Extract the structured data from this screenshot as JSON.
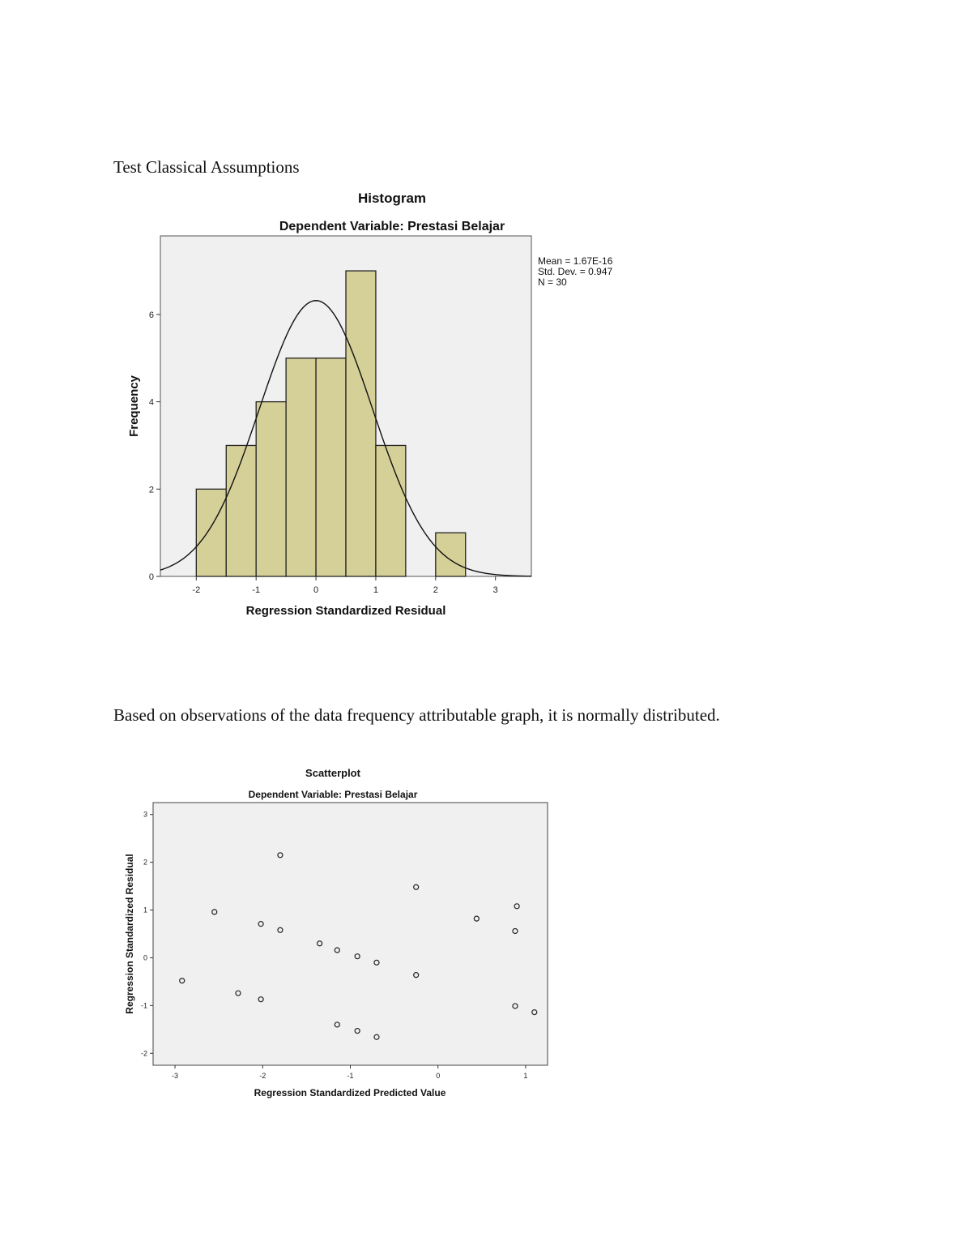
{
  "document": {
    "heading": "Test Classical Assumptions",
    "paragraph": "Based on observations of the data frequency attributable graph, it is normally distributed."
  },
  "histogram": {
    "title": "Histogram",
    "subtitle": "Dependent Variable: Prestasi Belajar",
    "stats": [
      "Mean = 1.67E-16",
      "Std. Dev. = 0.947",
      "N = 30"
    ],
    "bar_fill": "#d5cf98",
    "frame_bg": "#f0f0f0"
  },
  "scatter": {
    "title": "Scatterplot",
    "subtitle": "Dependent Variable: Prestasi Belajar",
    "frame_bg": "#f0f0f0"
  },
  "chart_data": [
    {
      "type": "bar",
      "title": "Histogram",
      "subtitle": "Dependent Variable: Prestasi Belajar",
      "xlabel": "Regression Standardized Residual",
      "ylabel": "Frequency",
      "bin_width": 0.5,
      "bins": [
        {
          "start": -2.0,
          "end": -1.5,
          "count": 2
        },
        {
          "start": -1.5,
          "end": -1.0,
          "count": 3
        },
        {
          "start": -1.0,
          "end": -0.5,
          "count": 4
        },
        {
          "start": -0.5,
          "end": 0.0,
          "count": 5
        },
        {
          "start": 0.0,
          "end": 0.5,
          "count": 5
        },
        {
          "start": 0.5,
          "end": 1.0,
          "count": 7
        },
        {
          "start": 1.0,
          "end": 1.5,
          "count": 3
        },
        {
          "start": 2.0,
          "end": 2.5,
          "count": 1
        }
      ],
      "normal_curve": {
        "mean": 0.0,
        "std": 0.947,
        "n": 30
      },
      "xlim": [
        -2.6,
        3.6
      ],
      "ylim": [
        0,
        7.8
      ],
      "xticks": [
        -2,
        -1,
        0,
        1,
        2,
        3
      ],
      "xtick_labels": [
        "-2",
        "-1",
        "0",
        "1",
        "2",
        "3"
      ],
      "yticks": [
        0,
        2,
        4,
        6
      ],
      "ytick_labels": [
        "0",
        "2",
        "4",
        "6"
      ],
      "grid": false
    },
    {
      "type": "scatter",
      "title": "Scatterplot",
      "subtitle": "Dependent Variable: Prestasi Belajar",
      "xlabel": "Regression Standardized Predicted Value",
      "ylabel": "Regression Standardized Residual",
      "xlim": [
        -3.25,
        1.25
      ],
      "ylim": [
        -2.25,
        3.25
      ],
      "xticks": [
        -3,
        -2,
        -1,
        0,
        1
      ],
      "xtick_labels": [
        "-3",
        "-2",
        "-1",
        "0",
        "1"
      ],
      "yticks": [
        -2,
        -1,
        0,
        1,
        2,
        3
      ],
      "ytick_labels": [
        "-2",
        "-1",
        "0",
        "1",
        "2",
        "3"
      ],
      "grid": false,
      "points": [
        {
          "x": -1.8,
          "y": 2.15
        },
        {
          "x": -0.25,
          "y": 1.48
        },
        {
          "x": 0.9,
          "y": 1.08
        },
        {
          "x": -2.55,
          "y": 0.96
        },
        {
          "x": 0.44,
          "y": 0.82
        },
        {
          "x": -2.02,
          "y": 0.71
        },
        {
          "x": -1.8,
          "y": 0.58
        },
        {
          "x": 0.88,
          "y": 0.56
        },
        {
          "x": -1.35,
          "y": 0.3
        },
        {
          "x": -1.15,
          "y": 0.16
        },
        {
          "x": -0.92,
          "y": 0.03
        },
        {
          "x": -0.7,
          "y": -0.1
        },
        {
          "x": -0.25,
          "y": -0.36
        },
        {
          "x": -2.92,
          "y": -0.48
        },
        {
          "x": -2.28,
          "y": -0.74
        },
        {
          "x": -2.02,
          "y": -0.87
        },
        {
          "x": 0.88,
          "y": -1.01
        },
        {
          "x": 1.1,
          "y": -1.14
        },
        {
          "x": -1.15,
          "y": -1.4
        },
        {
          "x": -0.92,
          "y": -1.53
        },
        {
          "x": -0.7,
          "y": -1.66
        }
      ]
    }
  ]
}
